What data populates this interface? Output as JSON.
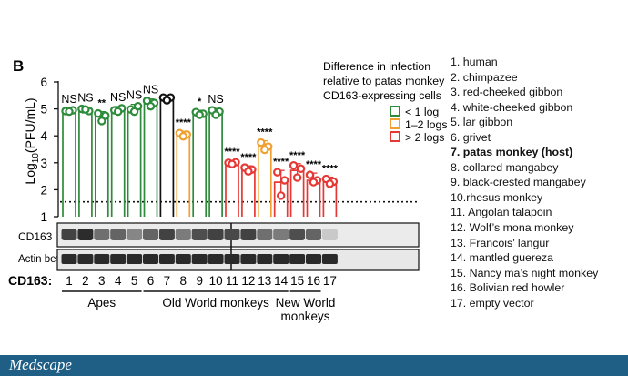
{
  "panel_label": "B",
  "chart_data": {
    "type": "bar",
    "ylabel_prefix": "Log",
    "ylabel_sub": "10",
    "ylabel_suffix": "(PFU/mL)",
    "ylim": [
      1,
      6
    ],
    "yticks": [
      "1",
      "2",
      "3",
      "4",
      "5",
      "6"
    ],
    "detection_limit": 1.55,
    "categories": [
      "1",
      "2",
      "3",
      "4",
      "5",
      "6",
      "7",
      "8",
      "9",
      "10",
      "11",
      "12",
      "13",
      "14",
      "15",
      "16",
      "17"
    ],
    "values": [
      4.92,
      4.97,
      4.72,
      4.95,
      4.98,
      5.22,
      5.38,
      4.05,
      4.83,
      4.88,
      2.97,
      2.75,
      3.6,
      2.28,
      2.72,
      2.35,
      2.3
    ],
    "points": [
      [
        4.92,
        4.95,
        4.9
      ],
      [
        5.0,
        4.92,
        4.98
      ],
      [
        4.83,
        4.75,
        4.55
      ],
      [
        4.95,
        5.02,
        4.9
      ],
      [
        4.98,
        5.1,
        4.9
      ],
      [
        5.3,
        5.22,
        5.1
      ],
      [
        5.42,
        5.42,
        5.32
      ],
      [
        4.1,
        4.05,
        3.98
      ],
      [
        4.88,
        4.82,
        4.78
      ],
      [
        4.95,
        4.9,
        4.78
      ],
      [
        3.0,
        3.02,
        2.95
      ],
      [
        2.82,
        2.75,
        2.68
      ],
      [
        3.75,
        3.6,
        3.48
      ],
      [
        2.65,
        2.35,
        1.78
      ],
      [
        2.9,
        2.78,
        2.45
      ],
      [
        2.55,
        2.35,
        2.28
      ],
      [
        2.4,
        2.3,
        2.22
      ]
    ],
    "groups": [
      "green",
      "green",
      "green",
      "green",
      "green",
      "green",
      "black",
      "orange",
      "green",
      "green",
      "red",
      "red",
      "orange",
      "red",
      "red",
      "red",
      "red"
    ],
    "significance": [
      "NS",
      "NS",
      "**",
      "NS",
      "NS",
      "NS",
      "",
      "****",
      "*",
      "NS",
      "****",
      "****",
      "****",
      "****",
      "****",
      "****",
      "****"
    ],
    "colors": {
      "green": "#2e8b3c",
      "orange": "#f0a030",
      "red": "#e53935",
      "black": "#111111"
    },
    "legend": {
      "title": [
        "Difference in infection",
        "relative to patas monkey",
        "CD163-expressing cells"
      ],
      "items": [
        {
          "label": "< 1 log",
          "color": "green"
        },
        {
          "label": "1–2 logs",
          "color": "orange"
        },
        {
          "label": "> 2 logs",
          "color": "red"
        }
      ]
    }
  },
  "blot": {
    "rows": [
      "CD163",
      "Actin beta"
    ],
    "cd163_intensity": [
      0.75,
      0.85,
      0.55,
      0.6,
      0.45,
      0.6,
      0.75,
      0.5,
      0.7,
      0.75,
      0.72,
      0.75,
      0.55,
      0.5,
      0.7,
      0.6,
      0.15
    ],
    "axis_label": "CD163:"
  },
  "brackets": [
    {
      "label": "Apes",
      "from": 1,
      "to": 5
    },
    {
      "label": "Old World monkeys",
      "from": 6,
      "to": 14
    },
    {
      "label": "New World",
      "label2": "monkeys",
      "from": 15,
      "to": 16
    }
  ],
  "species": [
    {
      "text": "1. human",
      "bold": false
    },
    {
      "text": "2. chimpazee",
      "bold": false
    },
    {
      "text": "3. red-cheeked gibbon",
      "bold": false
    },
    {
      "text": "4. white-cheeked gibbon",
      "bold": false
    },
    {
      "text": "5. lar gibbon",
      "bold": false
    },
    {
      "text": "6. grivet",
      "bold": false
    },
    {
      "text": "7. patas monkey (host)",
      "bold": true
    },
    {
      "text": "8. collared mangabey",
      "bold": false
    },
    {
      "text": "9. black-crested mangabey",
      "bold": false
    },
    {
      "text": "10.rhesus monkey",
      "bold": false
    },
    {
      "text": "11. Angolan talapoin",
      "bold": false
    },
    {
      "text": "12. Wolf’s mona monkey",
      "bold": false
    },
    {
      "text": "13. Francois’ langur",
      "bold": false
    },
    {
      "text": "14. mantled guereza",
      "bold": false
    },
    {
      "text": "15. Nancy ma’s night monkey",
      "bold": false
    },
    {
      "text": "16. Bolivian red howler",
      "bold": false
    },
    {
      "text": "17. empty vector",
      "bold": false
    }
  ],
  "footer": {
    "logo": "Medscape"
  }
}
